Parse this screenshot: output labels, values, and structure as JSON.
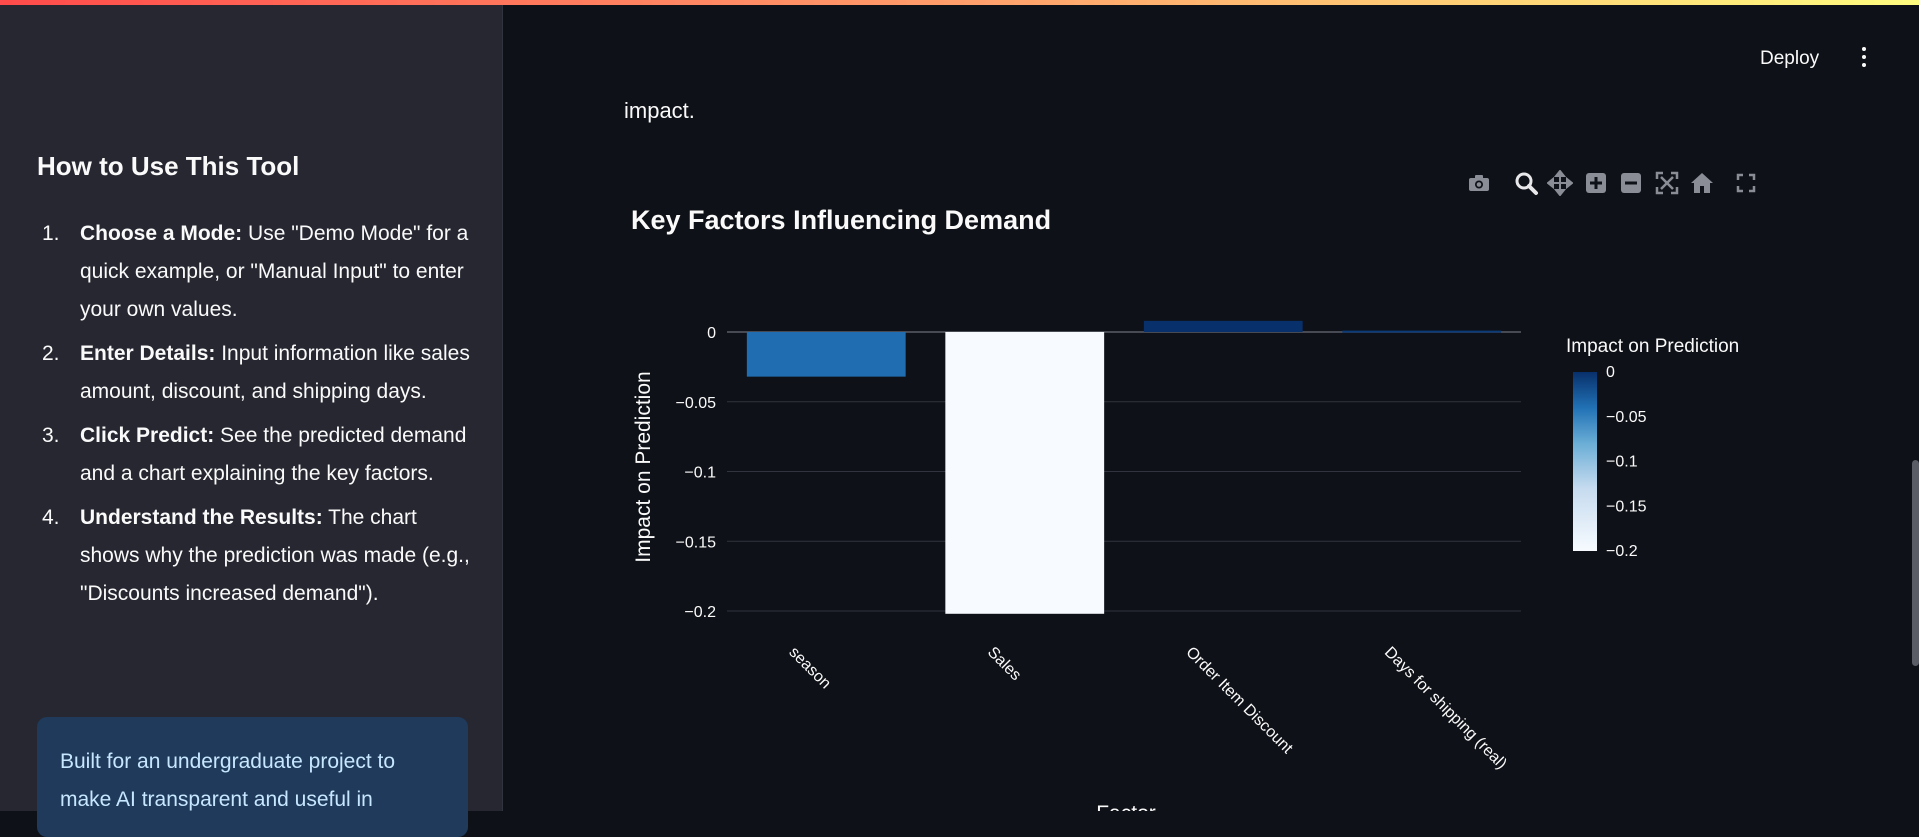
{
  "app": {
    "deploy_label": "Deploy",
    "menu_icon": "kebab-menu-icon",
    "accent_gradient": [
      "#ff4b4b",
      "#fffd80"
    ]
  },
  "sidebar": {
    "title": "How to Use This Tool",
    "steps": [
      {
        "num": "1.",
        "bold": "Choose a Mode:",
        "text": " Use \"Demo Mode\" for a quick example, or \"Manual Input\" to enter your own values."
      },
      {
        "num": "2.",
        "bold": "Enter Details:",
        "text": " Input information like sales amount, discount, and shipping days."
      },
      {
        "num": "3.",
        "bold": "Click Predict:",
        "text": " See the predicted demand and a chart explaining the key factors."
      },
      {
        "num": "4.",
        "bold": "Understand the Results:",
        "text": " The chart shows why the prediction was made (e.g., \"Discounts increased demand\")."
      }
    ],
    "info": "Built for an undergraduate project to make AI transparent and useful in",
    "info_color": "#1f3a5a"
  },
  "main": {
    "intro_tail": "impact."
  },
  "modebar": {
    "icons": [
      "camera-icon",
      "zoom-icon",
      "pan-icon",
      "zoom-in-icon",
      "zoom-out-icon",
      "autoscale-icon",
      "reset-axes-icon",
      "fullscreen-icon"
    ]
  },
  "chart_data": {
    "type": "bar",
    "title": "Key Factors Influencing Demand",
    "xlabel": "Factor",
    "ylabel": "Impact on Prediction",
    "categories": [
      "season",
      "Sales",
      "Order Item Discount",
      "Days for shipping (real)"
    ],
    "values": [
      -0.032,
      -0.202,
      0.008,
      0.001
    ],
    "ylim": [
      -0.2,
      0
    ],
    "yticks": [
      "0",
      "−0.05",
      "−0.1",
      "−0.15",
      "−0.2"
    ],
    "ytick_values": [
      0,
      -0.05,
      -0.1,
      -0.15,
      -0.2
    ],
    "colorbar": {
      "title": "Impact on Prediction",
      "ticks": [
        "0",
        "−0.05",
        "−0.1",
        "−0.15",
        "−0.2"
      ],
      "tick_values": [
        0,
        -0.05,
        -0.1,
        -0.15,
        -0.2
      ],
      "colorscale": [
        "#f7fbff",
        "#08306b"
      ]
    },
    "grid": true
  }
}
